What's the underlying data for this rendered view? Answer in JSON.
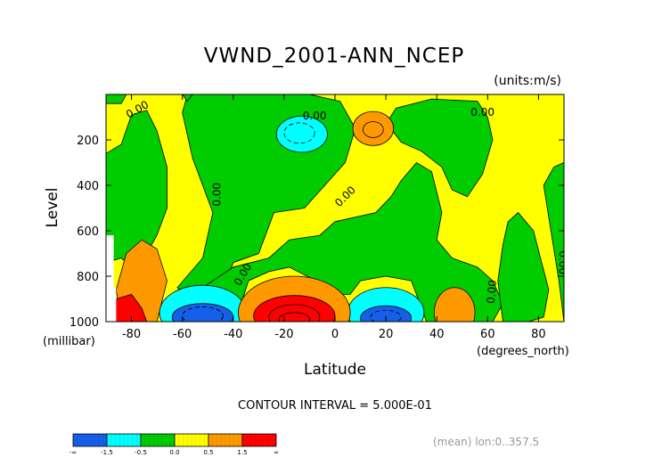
{
  "chart_data": {
    "type": "contour",
    "title": "VWND_2001-ANN_NCEP",
    "units_label": "(units:m/s)",
    "xlabel": "Latitude",
    "xunit": "(degrees_north)",
    "ylabel": "Level",
    "yunit": "(millibar)",
    "xlim": [
      -90,
      90
    ],
    "ylim": [
      1000,
      0
    ],
    "x_ticks": [
      -80,
      -60,
      -40,
      -20,
      0,
      20,
      40,
      60,
      80
    ],
    "y_ticks": [
      200,
      400,
      600,
      800,
      1000
    ],
    "contour_interval_text": "CONTOUR INTERVAL = 5.000E-01",
    "footer_note": "(mean) lon:0..357.5",
    "contour_labels": [
      "0.00",
      "0.00",
      "0.00",
      "0.00",
      "0.00",
      "0.00",
      "0.00",
      "0.00",
      "0.00"
    ],
    "colorbar": {
      "labels": [
        "-∞",
        "-1.5",
        "-0.5",
        "0.0",
        "0.5",
        "1.5",
        "∞"
      ],
      "colors": [
        "#1560e8",
        "#00ffff",
        "#00cc00",
        "#ffff00",
        "#ff9900",
        "#ff0000"
      ]
    },
    "regions": [
      {
        "band": "green",
        "x": -90,
        "y": 300
      },
      {
        "band": "cyan",
        "x": -10,
        "y": 200
      },
      {
        "band": "orange",
        "x": 15,
        "y": 160
      },
      {
        "band": "blue",
        "x": -50,
        "y": 985
      },
      {
        "band": "red",
        "x": -15,
        "y": 965
      },
      {
        "band": "blue",
        "x": 20,
        "y": 985
      },
      {
        "band": "orange",
        "x": 47,
        "y": 960
      },
      {
        "band": "red",
        "x": -85,
        "y": 960
      }
    ]
  }
}
